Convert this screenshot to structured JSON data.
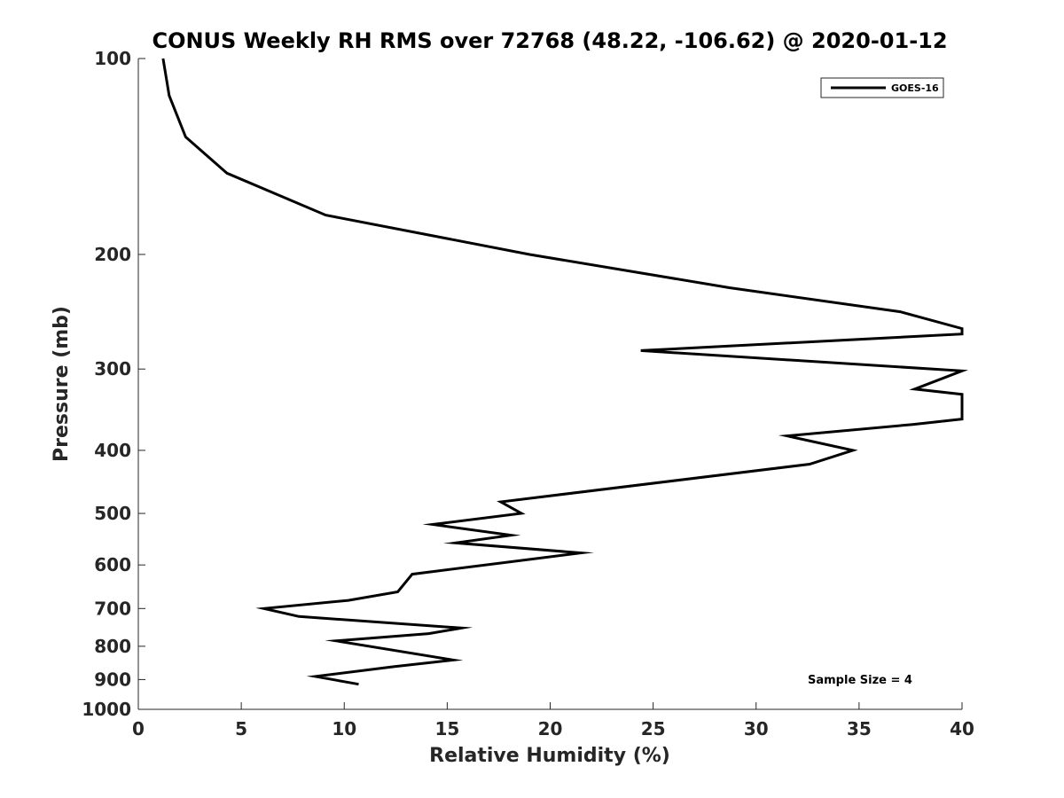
{
  "chart_data": {
    "type": "line",
    "title": "CONUS Weekly RH RMS over 72768 (48.22, -106.62) @ 2020-01-12",
    "xlabel": "Relative Humidity (%)",
    "ylabel": "Pressure (mb)",
    "xlim": [
      0,
      40
    ],
    "ylim": [
      100,
      1000
    ],
    "yscale": "log",
    "y_reversed": true,
    "grid": false,
    "legend_position": "top-right",
    "x_ticks": [
      0,
      5,
      10,
      15,
      20,
      25,
      30,
      35,
      40
    ],
    "x_tick_labels": [
      "0",
      "5",
      "10",
      "15",
      "20",
      "25",
      "30",
      "35",
      "40"
    ],
    "y_ticks": [
      100,
      200,
      300,
      400,
      500,
      600,
      700,
      800,
      900,
      1000
    ],
    "y_tick_labels": [
      "100",
      "200",
      "300",
      "400",
      "500",
      "600",
      "700",
      "800",
      "900",
      "1000"
    ],
    "annotation": "Sample Size = 4",
    "series": [
      {
        "name": "GOES-16",
        "color": "#000000",
        "points": [
          {
            "x": 10.7,
            "y": 915
          },
          {
            "x": 8.6,
            "y": 890
          },
          {
            "x": 12.4,
            "y": 860
          },
          {
            "x": 15.3,
            "y": 840
          },
          {
            "x": 9.6,
            "y": 785
          },
          {
            "x": 14.1,
            "y": 765
          },
          {
            "x": 15.7,
            "y": 750
          },
          {
            "x": 7.8,
            "y": 720
          },
          {
            "x": 6.1,
            "y": 700
          },
          {
            "x": 10.2,
            "y": 680
          },
          {
            "x": 12.6,
            "y": 660
          },
          {
            "x": 13.3,
            "y": 620
          },
          {
            "x": 21.5,
            "y": 575
          },
          {
            "x": 15.4,
            "y": 555
          },
          {
            "x": 18.1,
            "y": 540
          },
          {
            "x": 14.3,
            "y": 520
          },
          {
            "x": 18.6,
            "y": 500
          },
          {
            "x": 17.6,
            "y": 480
          },
          {
            "x": 32.6,
            "y": 420
          },
          {
            "x": 34.7,
            "y": 400
          },
          {
            "x": 31.5,
            "y": 380
          },
          {
            "x": 37.6,
            "y": 365
          },
          {
            "x": 40.0,
            "y": 358
          },
          {
            "x": 40.0,
            "y": 328
          },
          {
            "x": 37.7,
            "y": 322
          },
          {
            "x": 40.0,
            "y": 302
          },
          {
            "x": 24.4,
            "y": 281
          },
          {
            "x": 40.0,
            "y": 265
          },
          {
            "x": 40.0,
            "y": 260
          },
          {
            "x": 37.0,
            "y": 245
          },
          {
            "x": 28.7,
            "y": 225
          },
          {
            "x": 19.0,
            "y": 200
          },
          {
            "x": 9.1,
            "y": 174
          },
          {
            "x": 4.3,
            "y": 150
          },
          {
            "x": 2.3,
            "y": 132
          },
          {
            "x": 1.5,
            "y": 114
          },
          {
            "x": 1.2,
            "y": 100
          }
        ]
      }
    ]
  }
}
